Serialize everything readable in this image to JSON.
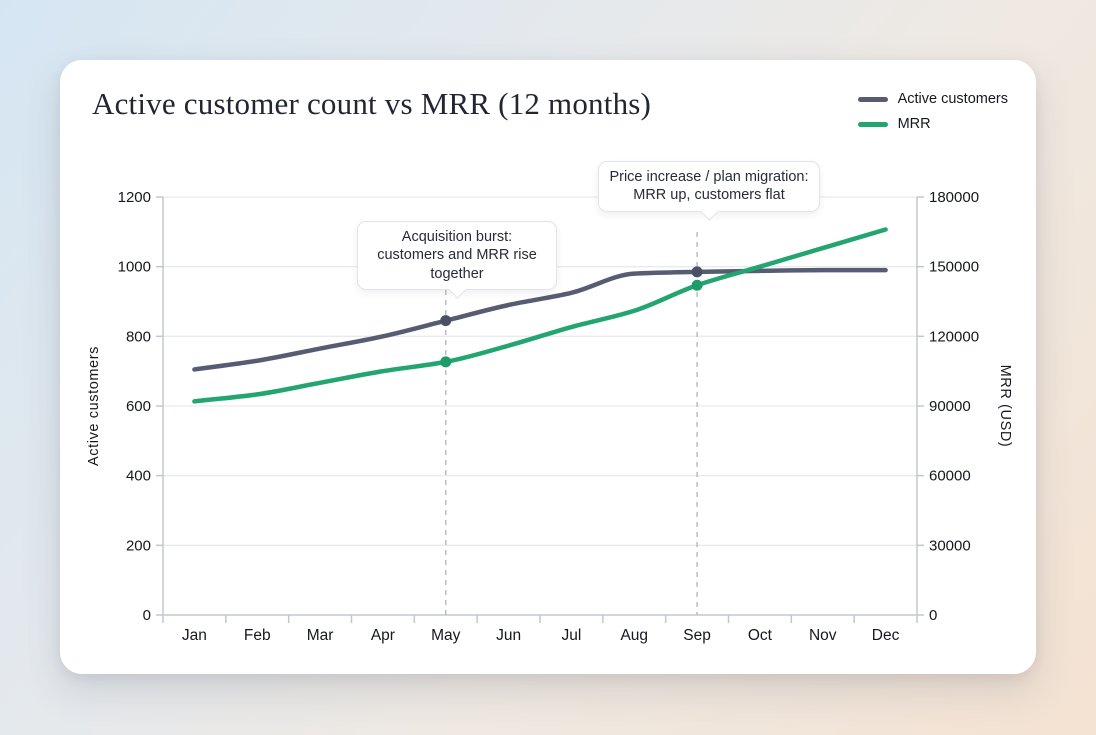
{
  "card": {
    "title": "Active customer count vs MRR (12 months)"
  },
  "colors": {
    "customers_line": "#565d73",
    "customers_dot": "#4a5166",
    "mrr_line": "#23a571",
    "mrr_dot": "#1d9c68",
    "grid": "#e9eaee",
    "spine": "#c3c7cd",
    "tick_text": "#15181f",
    "dashed_guide": "#b9bdc5"
  },
  "chart_data": {
    "type": "line",
    "title": "Active customer count vs MRR (12 months)",
    "categories": [
      "Jan",
      "Feb",
      "Mar",
      "Apr",
      "May",
      "Jun",
      "Jul",
      "Aug",
      "Sep",
      "Oct",
      "Nov",
      "Dec"
    ],
    "series": [
      {
        "name": "Active customers",
        "axis": "left",
        "color": "#565d73",
        "values": [
          705,
          730,
          765,
          800,
          845,
          890,
          925,
          980,
          985,
          988,
          990,
          990
        ]
      },
      {
        "name": "MRR",
        "axis": "right",
        "color": "#23a571",
        "values": [
          92000,
          95000,
          100000,
          105000,
          109000,
          116000,
          124000,
          131000,
          142000,
          150000,
          158000,
          166000
        ]
      }
    ],
    "left_axis": {
      "label": "Active customers",
      "ticks": [
        0,
        200,
        400,
        600,
        800,
        1000,
        1200
      ],
      "range": [
        0,
        1200
      ]
    },
    "right_axis": {
      "label": "MRR (USD)",
      "ticks": [
        0,
        30000,
        60000,
        90000,
        120000,
        150000,
        180000
      ],
      "range": [
        0,
        180000
      ]
    },
    "grid": "horizontal",
    "legend_position": "top-right",
    "annotations": [
      {
        "text": "Acquisition burst: customers and MRR rise together",
        "month": "May",
        "month_index": 4,
        "marked_series": [
          "Active customers",
          "MRR"
        ]
      },
      {
        "text": "Price increase / plan migration: MRR up, customers flat",
        "month": "Sep",
        "month_index": 8,
        "marked_series": [
          "Active customers",
          "MRR"
        ]
      }
    ]
  }
}
